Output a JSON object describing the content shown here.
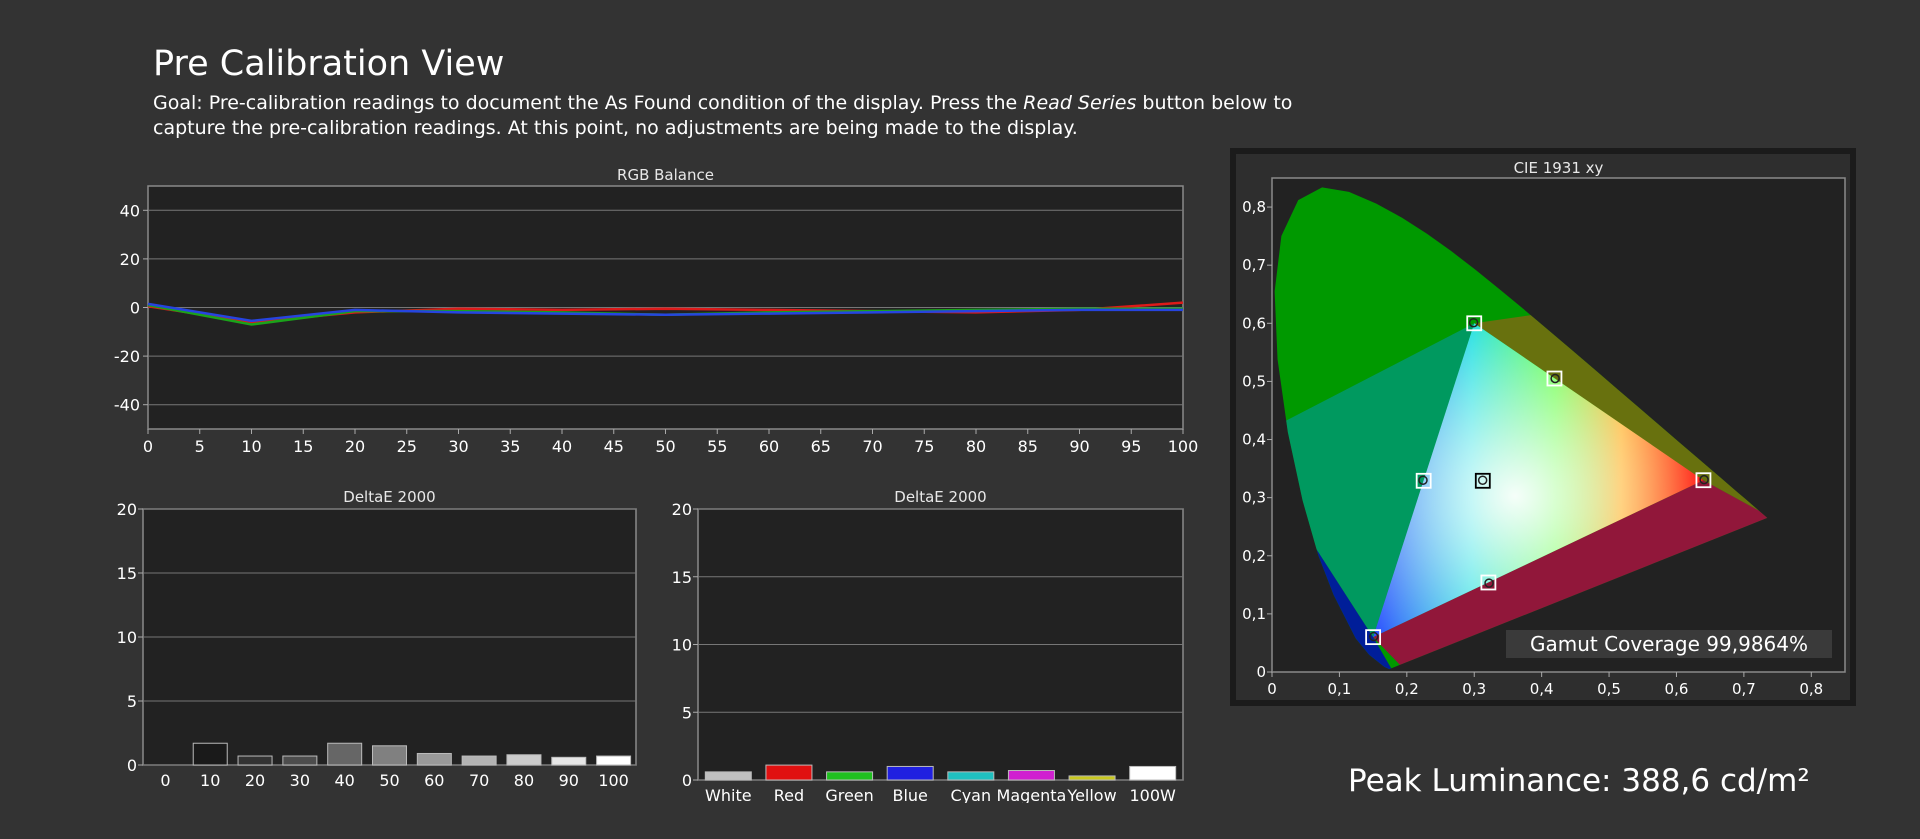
{
  "page": {
    "title": "Pre Calibration View",
    "goal_prefix": "Goal: Pre-calibration readings to document the As Found condition of the display. Press the ",
    "goal_italic": "Read Series",
    "goal_suffix": " button below to capture the pre-calibration readings. At this point, no adjustments are being made to the display.",
    "peak_luminance": "Peak Luminance: 388,6 cd/m²"
  },
  "chart_data": [
    {
      "id": "rgb",
      "type": "line",
      "title": "RGB Balance",
      "xlabel": "",
      "ylabel": "",
      "ylim": [
        -50,
        50
      ],
      "yticks": [
        40,
        20,
        0,
        -20,
        -40
      ],
      "ytick_labels": [
        "40",
        "20",
        "0",
        "-20",
        "-40"
      ],
      "xlim": [
        0,
        100
      ],
      "xticks": [
        0,
        5,
        10,
        15,
        20,
        25,
        30,
        35,
        40,
        45,
        50,
        55,
        60,
        65,
        70,
        75,
        80,
        85,
        90,
        95,
        100
      ],
      "grid": true,
      "colors": {
        "Red": "#dd1a1a",
        "Green": "#1aa31a",
        "Blue": "#2644e0"
      },
      "x": [
        0,
        10,
        20,
        30,
        40,
        50,
        60,
        70,
        80,
        90,
        100
      ],
      "series": [
        {
          "key": "Red",
          "values": [
            0.5,
            -6,
            -2,
            -0.5,
            -1,
            -0.5,
            -1,
            -1.5,
            -2,
            -1,
            2
          ]
        },
        {
          "key": "Green",
          "values": [
            1,
            -7,
            -1.5,
            -1.5,
            -2,
            -3,
            -2,
            -1.5,
            -1,
            -0.5,
            -0.5
          ]
        },
        {
          "key": "Blue",
          "values": [
            1.5,
            -5.5,
            -1,
            -2,
            -2.5,
            -3,
            -2.5,
            -2,
            -1.5,
            -1,
            -1
          ]
        }
      ]
    },
    {
      "id": "de_gray",
      "type": "bar",
      "title": "DeltaE 2000",
      "xlabel": "",
      "ylabel": "",
      "ylim": [
        0,
        20
      ],
      "yticks": [
        0,
        5,
        10,
        15,
        20
      ],
      "ytick_labels": [
        "0",
        "5",
        "10",
        "15",
        "20"
      ],
      "grid": true,
      "categories": [
        "0",
        "10",
        "20",
        "30",
        "40",
        "50",
        "60",
        "70",
        "80",
        "90",
        "100"
      ],
      "values": [
        0,
        1.7,
        0.7,
        0.7,
        1.7,
        1.5,
        0.9,
        0.7,
        0.8,
        0.6,
        0.7
      ],
      "colors": [
        "#000000",
        "#1a1a1a",
        "#333333",
        "#4d4d4d",
        "#666666",
        "#808080",
        "#999999",
        "#b3b3b3",
        "#cccccc",
        "#e6e6e6",
        "#ffffff"
      ]
    },
    {
      "id": "de_color",
      "type": "bar",
      "title": "DeltaE 2000",
      "xlabel": "",
      "ylabel": "",
      "ylim": [
        0,
        20
      ],
      "yticks": [
        0,
        5,
        10,
        15,
        20
      ],
      "ytick_labels": [
        "0",
        "5",
        "10",
        "15",
        "20"
      ],
      "grid": true,
      "categories": [
        "White",
        "Red",
        "Green",
        "Blue",
        "Cyan",
        "Magenta",
        "Yellow",
        "100W"
      ],
      "values": [
        0.6,
        1.1,
        0.6,
        1.0,
        0.6,
        0.7,
        0.3,
        1.0
      ],
      "colors": [
        "#c0c0c0",
        "#e01010",
        "#20c020",
        "#2020e0",
        "#20c0c0",
        "#d020d0",
        "#c8c820",
        "#ffffff"
      ]
    },
    {
      "id": "cie",
      "type": "scatter",
      "title": "CIE 1931 xy",
      "xlabel": "",
      "ylabel": "",
      "xlim": [
        0,
        0.85
      ],
      "ylim": [
        0,
        0.85
      ],
      "xticks": [
        0,
        0.1,
        0.2,
        0.3,
        0.4,
        0.5,
        0.6,
        0.7,
        0.8
      ],
      "xtick_labels": [
        "0",
        "0,1",
        "0,2",
        "0,3",
        "0,4",
        "0,5",
        "0,6",
        "0,7",
        "0,8"
      ],
      "yticks": [
        0,
        0.1,
        0.2,
        0.3,
        0.4,
        0.5,
        0.6,
        0.7,
        0.8
      ],
      "ytick_labels": [
        "0",
        "0,1",
        "0,2",
        "0,3",
        "0,4",
        "0,5",
        "0,6",
        "0,7",
        "0,8"
      ],
      "grid": false,
      "gamut_coverage": "Gamut Coverage 99,9864%",
      "targets": [
        {
          "name": "Red",
          "x": 0.64,
          "y": 0.33
        },
        {
          "name": "Green",
          "x": 0.3,
          "y": 0.6
        },
        {
          "name": "Blue",
          "x": 0.15,
          "y": 0.06
        },
        {
          "name": "Cyan",
          "x": 0.225,
          "y": 0.329
        },
        {
          "name": "Magenta",
          "x": 0.321,
          "y": 0.154
        },
        {
          "name": "Yellow",
          "x": 0.419,
          "y": 0.505
        },
        {
          "name": "White",
          "x": 0.3127,
          "y": 0.329
        }
      ],
      "measured": [
        {
          "name": "Red",
          "x": 0.641,
          "y": 0.331
        },
        {
          "name": "Green",
          "x": 0.299,
          "y": 0.601
        },
        {
          "name": "Blue",
          "x": 0.151,
          "y": 0.061
        },
        {
          "name": "Cyan",
          "x": 0.224,
          "y": 0.33
        },
        {
          "name": "Magenta",
          "x": 0.322,
          "y": 0.153
        },
        {
          "name": "Yellow",
          "x": 0.42,
          "y": 0.505
        },
        {
          "name": "White",
          "x": 0.3125,
          "y": 0.33
        }
      ]
    }
  ]
}
